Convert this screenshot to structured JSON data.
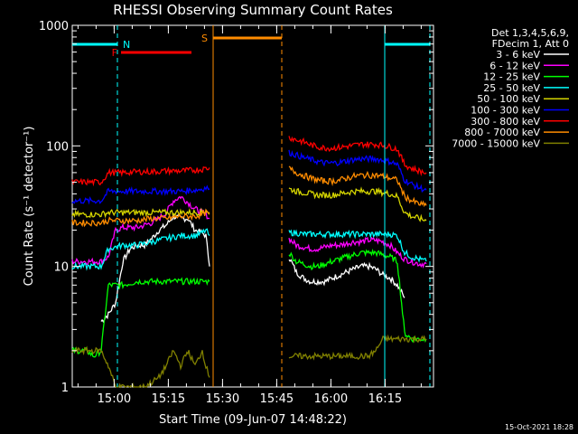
{
  "chart_data": {
    "type": "line",
    "title": "RHESSI Observing Summary Count Rates",
    "xlabel": "Start Time (09-Jun-07 14:48:22)",
    "ylabel": "Count Rate (s⁻¹ detector⁻¹)",
    "y_scale": "log",
    "ylim": [
      1,
      1000
    ],
    "xlim_minutes": [
      0,
      100
    ],
    "x_ticks": [
      {
        "min": 11.6,
        "label": "15:00"
      },
      {
        "min": 26.6,
        "label": "15:15"
      },
      {
        "min": 41.6,
        "label": "15:30"
      },
      {
        "min": 56.6,
        "label": "15:45"
      },
      {
        "min": 71.6,
        "label": "16:00"
      },
      {
        "min": 86.6,
        "label": "16:15"
      }
    ],
    "y_ticks": [
      {
        "value": 1,
        "label": "1"
      },
      {
        "value": 10,
        "label": "10"
      },
      {
        "value": 100,
        "label": "100"
      },
      {
        "value": 1000,
        "label": "1000"
      }
    ],
    "legend_header": [
      "Det 1,3,4,5,6,9,",
      "FDecim 1, Att 0"
    ],
    "legend_placement": "right",
    "series": [
      {
        "name": "3 - 6 keV",
        "color": "#ffffff",
        "x": [
          8,
          10,
          12,
          14,
          16,
          18,
          20,
          22,
          24,
          26,
          28,
          30,
          32,
          34,
          36,
          37,
          38,
          60,
          62,
          64,
          66,
          68,
          70,
          72,
          74,
          76,
          78,
          80,
          82,
          84,
          86,
          88,
          90,
          92
        ],
        "values": [
          3.5,
          4,
          5,
          11,
          14,
          15,
          15,
          17,
          20,
          22,
          26,
          25,
          25,
          20,
          19,
          18,
          10,
          12,
          9,
          8,
          7.5,
          7.5,
          7.5,
          8,
          8.5,
          9,
          9.5,
          10,
          10,
          9.5,
          8.5,
          8,
          7,
          5.5
        ]
      },
      {
        "name": "6 - 12 keV",
        "color": "#ff00ff",
        "x": [
          0,
          4,
          8,
          10,
          12,
          14,
          16,
          18,
          20,
          22,
          24,
          26,
          28,
          30,
          32,
          34,
          36,
          37,
          38,
          60,
          62,
          64,
          66,
          68,
          70,
          72,
          74,
          76,
          78,
          80,
          82,
          84,
          86,
          88,
          90,
          92,
          94,
          96,
          98
        ],
        "values": [
          11,
          11,
          11,
          12,
          20,
          21,
          21,
          21,
          22,
          23,
          25,
          28,
          35,
          38,
          34,
          30,
          28,
          27,
          25,
          17,
          15,
          14.5,
          14,
          14,
          14.5,
          15,
          15,
          15.5,
          16,
          16,
          16.5,
          16.5,
          16,
          15,
          13,
          11.5,
          11,
          10.5,
          10.5
        ]
      },
      {
        "name": "12 - 25 keV",
        "color": "#00ff00",
        "x": [
          0,
          2,
          4,
          6,
          8,
          10,
          14,
          18,
          22,
          26,
          30,
          34,
          36,
          37,
          38,
          60,
          62,
          64,
          66,
          68,
          70,
          72,
          74,
          76,
          78,
          80,
          82,
          84,
          86,
          88,
          90,
          92,
          94,
          96,
          98
        ],
        "values": [
          2,
          2,
          2,
          1.8,
          2,
          7,
          7,
          7.5,
          7.5,
          7.5,
          7.5,
          7.5,
          7.5,
          7.5,
          7.5,
          13,
          11,
          10.5,
          10,
          10,
          10.5,
          11,
          11.5,
          12,
          12.5,
          13,
          13,
          13,
          12.5,
          12,
          11,
          2.8,
          2.5,
          2.5,
          2.5
        ]
      },
      {
        "name": "25 - 50 keV",
        "color": "#00ffff",
        "x": [
          0,
          4,
          8,
          10,
          14,
          18,
          22,
          26,
          30,
          34,
          36,
          37,
          38,
          60,
          62,
          64,
          66,
          68,
          70,
          72,
          74,
          76,
          78,
          80,
          82,
          84,
          86,
          88,
          90,
          92,
          94,
          96,
          98
        ],
        "values": [
          10,
          10,
          10,
          14,
          15,
          15,
          16,
          17,
          18,
          18,
          19,
          20,
          18,
          19,
          19,
          18.5,
          18.5,
          18.5,
          18.5,
          18.5,
          18.5,
          18.5,
          18.5,
          18.5,
          18.5,
          18.5,
          18.5,
          18.5,
          18,
          13,
          12,
          11.5,
          11
        ]
      },
      {
        "name": "50 - 100 keV",
        "color": "#d4d400",
        "x": [
          0,
          4,
          8,
          10,
          14,
          18,
          22,
          26,
          30,
          34,
          36,
          37,
          38,
          60,
          62,
          64,
          66,
          68,
          70,
          72,
          74,
          76,
          78,
          80,
          82,
          84,
          86,
          88,
          90,
          92,
          94,
          96,
          98
        ],
        "values": [
          27,
          27,
          27,
          28,
          28,
          28,
          28,
          28,
          28,
          28,
          28,
          29,
          28,
          44,
          42,
          41,
          40,
          39,
          39,
          39,
          40,
          41,
          42,
          42,
          42,
          42,
          41,
          40,
          38,
          28,
          26,
          25,
          24
        ]
      },
      {
        "name": "100 - 300 keV",
        "color": "#0000ff",
        "x": [
          0,
          4,
          8,
          10,
          14,
          18,
          22,
          26,
          30,
          34,
          36,
          37,
          38,
          60,
          62,
          64,
          66,
          68,
          70,
          72,
          74,
          76,
          78,
          80,
          82,
          84,
          86,
          88,
          90,
          92,
          94,
          96,
          98
        ],
        "values": [
          35,
          35,
          35,
          42,
          42,
          42,
          42,
          42,
          42,
          43,
          44,
          45,
          44,
          88,
          84,
          80,
          77,
          74,
          72,
          72,
          73,
          75,
          77,
          78,
          78,
          78,
          76,
          74,
          70,
          52,
          48,
          45,
          43
        ]
      },
      {
        "name": "300 - 800 keV",
        "color": "#ff0000",
        "x": [
          0,
          4,
          8,
          10,
          14,
          18,
          22,
          26,
          30,
          34,
          36,
          37,
          38,
          60,
          62,
          64,
          66,
          68,
          70,
          72,
          74,
          76,
          78,
          80,
          82,
          84,
          86,
          88,
          90,
          92,
          94,
          96,
          98
        ],
        "values": [
          50,
          50,
          50,
          60,
          60,
          61,
          61,
          62,
          62,
          63,
          64,
          65,
          66,
          118,
          112,
          108,
          102,
          98,
          96,
          96,
          97,
          99,
          101,
          103,
          103,
          103,
          101,
          98,
          94,
          70,
          65,
          62,
          60
        ]
      },
      {
        "name": "800 - 7000 keV",
        "color": "#ff8c00",
        "x": [
          0,
          4,
          8,
          10,
          14,
          18,
          22,
          26,
          30,
          34,
          36,
          37,
          38,
          60,
          62,
          64,
          66,
          68,
          70,
          72,
          74,
          76,
          78,
          80,
          82,
          84,
          86,
          88,
          90,
          92,
          94,
          96,
          98
        ],
        "values": [
          23,
          23,
          23,
          24,
          24,
          24,
          25,
          25,
          26,
          26,
          27,
          28,
          27,
          65,
          60,
          57,
          54,
          52,
          51,
          51,
          52,
          54,
          56,
          57,
          57,
          57,
          56,
          54,
          52,
          38,
          35,
          33,
          32
        ]
      },
      {
        "name": "7000 - 15000 keV",
        "color": "#808000",
        "x": [
          0,
          2,
          4,
          6,
          8,
          10,
          12,
          20,
          24,
          26,
          28,
          30,
          32,
          34,
          36,
          37,
          38,
          60,
          62,
          64,
          66,
          68,
          70,
          72,
          74,
          76,
          78,
          80,
          82,
          84,
          86,
          88,
          90,
          92,
          94,
          96,
          98
        ],
        "values": [
          2,
          2,
          2,
          2,
          2,
          1.5,
          1,
          1,
          1.2,
          1.5,
          2,
          1.5,
          2,
          1.5,
          2,
          1.5,
          1.2,
          1.8,
          1.8,
          1.8,
          1.8,
          1.8,
          1.8,
          1.8,
          1.8,
          1.8,
          1.8,
          1.8,
          1.8,
          2,
          2.5,
          2.5,
          2.5,
          2.5,
          2.5,
          2.5,
          2.5
        ]
      }
    ],
    "annotations": [
      {
        "label": "N",
        "color": "#00ffff",
        "bar": [
          0,
          12.5
        ]
      },
      {
        "label": "N",
        "color": "#00ffff",
        "bar": [
          86.5,
          99
        ]
      },
      {
        "label": "F",
        "color": "#ff0000",
        "bar": [
          13.5,
          33
        ]
      },
      {
        "label": "S",
        "color": "#ff8c00",
        "bar": [
          39,
          58
        ]
      }
    ],
    "vlines": [
      {
        "x": 12.5,
        "color": "#00ffff",
        "dash": true
      },
      {
        "x": 86.5,
        "color": "#00ffff",
        "dash": false
      },
      {
        "x": 99,
        "color": "#00ffff",
        "dash": true
      },
      {
        "x": 39,
        "color": "#ff8c00",
        "dash": false
      },
      {
        "x": 58,
        "color": "#ff8c00",
        "dash": true
      }
    ],
    "footer": "15-Oct-2021 18:28"
  }
}
